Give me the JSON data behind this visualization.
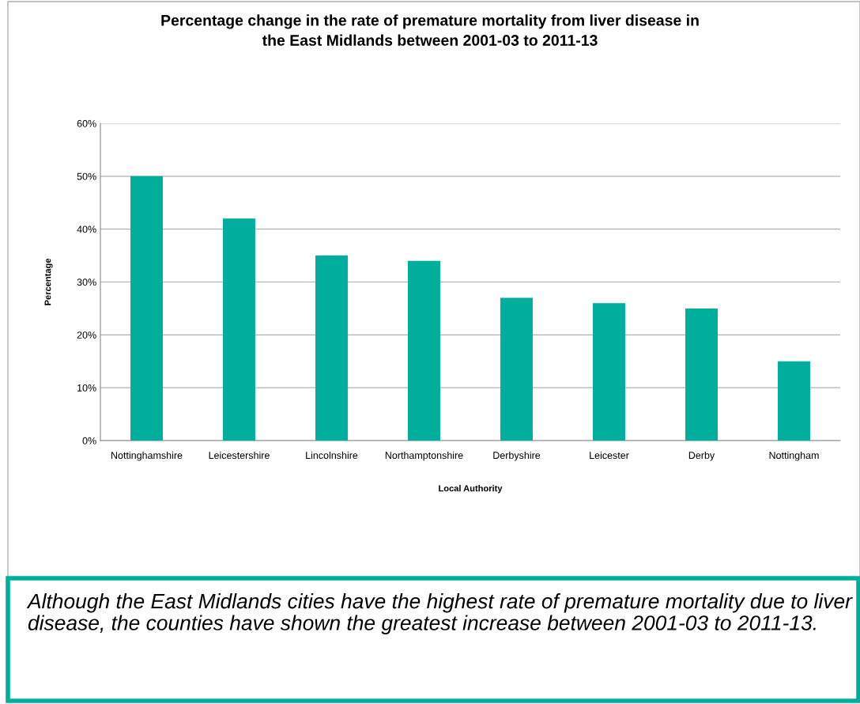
{
  "chart_data": {
    "type": "bar",
    "title": "Percentage change in the rate of premature mortality from liver disease in\nthe East Midlands between 2001-03 to 2011-13",
    "xlabel": "Local Authority",
    "ylabel": "Percentage",
    "categories": [
      "Nottinghamshire",
      "Leicestershire",
      "Lincolnshire",
      "Northamptonshire",
      "Derbyshire",
      "Leicester",
      "Derby",
      "Nottingham"
    ],
    "values": [
      50,
      42,
      35,
      34,
      27,
      26,
      25,
      15
    ],
    "color": "#00ae9e",
    "ylim": [
      0,
      60
    ],
    "yticks": [
      {
        "value": 0,
        "label": "0%"
      },
      {
        "value": 10,
        "label": "10%"
      },
      {
        "value": 20,
        "label": "20%"
      },
      {
        "value": 30,
        "label": "30%"
      },
      {
        "value": 40,
        "label": "40%"
      },
      {
        "value": 50,
        "label": "50%"
      },
      {
        "value": 60,
        "label": "60%"
      }
    ],
    "grid": "y",
    "legend": false,
    "annotations": [
      "Although the East Midlands cities have the highest rate of premature mortality due to liver disease, the counties have shown the greatest increase between 2001-03 to 2011-13."
    ]
  }
}
